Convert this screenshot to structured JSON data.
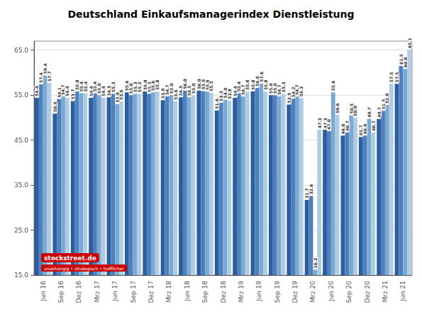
{
  "chart_data": {
    "type": "bar",
    "title": "Deutschland Einkaufsmanagerindex Dienstleistung",
    "categories": [
      "Jun 16",
      "Sep 16",
      "Dez 16",
      "Mrz 17",
      "Jun 17",
      "Sep 17",
      "Dez 17",
      "Mrz 18",
      "Jun 18",
      "Sep 18",
      "Dez 18",
      "Mrz 19",
      "Jun 19",
      "Sep 19",
      "Dez 19",
      "Mrz 20",
      "Jun 20",
      "Sep 20",
      "Dez 20",
      "Mrz 21",
      "Jun 21"
    ],
    "series": [
      {
        "color": "#2a5ea0",
        "values": [
          54.4,
          50.9,
          53.7,
          54.4,
          54.5,
          55.6,
          55.8,
          53.9,
          54.5,
          56.0,
          51.6,
          54.4,
          55.8,
          55.0,
          52.9,
          31.7,
          47.3,
          46.0,
          45.7,
          49.7,
          57.5
        ],
        "value_labels": [
          "54.4",
          "50.9",
          "53.7",
          "54.4",
          "54.5",
          "55.6",
          "55.8",
          "53.9",
          "54.5",
          "56.0",
          "51.6",
          "54.4",
          "55.8",
          "55.0",
          "52.9",
          "31.7",
          "47.3",
          "46.0",
          "45.7",
          "49.7",
          "57.5"
        ]
      },
      {
        "color": "#5080bc",
        "values": [
          57.4,
          54.1,
          55.8,
          55.4,
          55.3,
          55.0,
          55.3,
          54.7,
          56.0,
          55.9,
          53.3,
          55.4,
          56.6,
          55.0,
          54.2,
          32.6,
          47.0,
          46.7,
          46.0,
          51.5,
          61.5
        ],
        "value_labels": [
          "57.4",
          "54.1",
          "55.8",
          "55.4",
          "55.3",
          "55.0",
          "55.3",
          "54.7",
          "56.0",
          "55.9",
          "53.3",
          "55.4",
          "56.6",
          "55.0",
          "54.2",
          "32.6",
          "47.0",
          "46.7",
          "46.0",
          "51.5",
          "61.5"
        ]
      },
      {
        "color": "#7aaad4",
        "values": [
          59.4,
          54.7,
          55.4,
          55.0,
          53.0,
          55.3,
          55.6,
          55.0,
          54.5,
          55.8,
          54.0,
          54.7,
          57.6,
          54.7,
          54.7,
          16.2,
          55.6,
          50.5,
          49.7,
          52.8,
          60.8
        ],
        "value_labels": [
          "59.4",
          "54.7",
          "55.4",
          "55.0",
          "53.0",
          "55.3",
          "55.6",
          "55.0",
          "54.5",
          "55.8",
          "54.0",
          "54.7",
          "57.6",
          "54.7",
          "54.7",
          "16.2",
          "55.6",
          "50.5",
          "49.7",
          "52.8",
          "60.8"
        ]
      },
      {
        "color": "#b0cce4",
        "values": [
          57.7,
          54.4,
          55.4,
          54.4,
          53.6,
          55.3,
          55.8,
          53.6,
          55.0,
          55.5,
          53.8,
          55.8,
          55.8,
          55.3,
          54.3,
          47.3,
          50.6,
          50.0,
          46.7,
          57.5,
          65.1
        ],
        "value_labels": [
          "57.7",
          "54.4",
          "55.4",
          "54.4",
          "53.6",
          "55.3",
          "55.8",
          "53.6",
          "55.0",
          "55.5",
          "53.8",
          "55.8",
          "55.8",
          "55.3",
          "54.3",
          "47.3",
          "50.6",
          "50.0",
          "46.7",
          "57.5",
          "65.1"
        ]
      }
    ],
    "ylim": [
      15.0,
      67.0
    ],
    "yticks": [
      {
        "value": 15,
        "label": "15.0"
      },
      {
        "value": 25,
        "label": "25.0"
      },
      {
        "value": 35,
        "label": "35.0"
      },
      {
        "value": 45,
        "label": "45.0"
      },
      {
        "value": 55,
        "label": "55.0"
      },
      {
        "value": 65,
        "label": "65.0"
      }
    ],
    "grid": true,
    "data_labels": true,
    "annotations": [
      "stockstreet.de",
      "unabhängig • strategisch • trefflicher"
    ]
  }
}
